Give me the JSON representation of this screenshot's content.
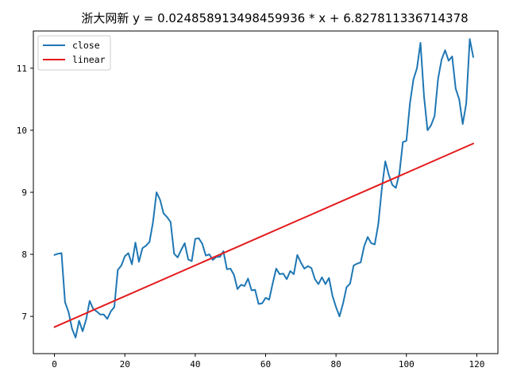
{
  "chart_data": {
    "type": "line",
    "title": "浙大网新 y = 0.024858913498459936 * x + 6.827811336714378",
    "xlabel": "",
    "ylabel": "",
    "xlim": [
      -6,
      126
    ],
    "ylim": [
      6.4,
      11.6
    ],
    "xticks": [
      0,
      20,
      40,
      60,
      80,
      100,
      120
    ],
    "yticks": [
      7,
      8,
      9,
      10,
      11
    ],
    "xtick_labels": [
      "0",
      "20",
      "40",
      "60",
      "80",
      "100",
      "120"
    ],
    "ytick_labels": [
      "7",
      "8",
      "9",
      "10",
      "11"
    ],
    "legend_position": "top-left",
    "grid": false,
    "series": [
      {
        "name": "close",
        "color": "#1f77b4",
        "x": [
          0,
          1,
          2,
          3,
          4,
          5,
          6,
          7,
          8,
          9,
          10,
          11,
          12,
          13,
          14,
          15,
          16,
          17,
          18,
          19,
          20,
          21,
          22,
          23,
          24,
          25,
          26,
          27,
          28,
          29,
          30,
          31,
          32,
          33,
          34,
          35,
          36,
          37,
          38,
          39,
          40,
          41,
          42,
          43,
          44,
          45,
          46,
          47,
          48,
          49,
          50,
          51,
          52,
          53,
          54,
          55,
          56,
          57,
          58,
          59,
          60,
          61,
          62,
          63,
          64,
          65,
          66,
          67,
          68,
          69,
          70,
          71,
          72,
          73,
          74,
          75,
          76,
          77,
          78,
          79,
          80,
          81,
          82,
          83,
          84,
          85,
          86,
          87,
          88,
          89,
          90,
          91,
          92,
          93,
          94,
          95,
          96,
          97,
          98,
          99,
          100,
          101,
          102,
          103,
          104,
          105,
          106,
          107,
          108,
          109,
          110,
          111,
          112,
          113,
          114,
          115,
          116,
          117,
          118,
          119
        ],
        "y": [
          7.99,
          8.01,
          8.02,
          7.23,
          7.07,
          6.8,
          6.66,
          6.93,
          6.76,
          6.95,
          7.25,
          7.12,
          7.08,
          7.03,
          7.03,
          6.96,
          7.08,
          7.15,
          7.75,
          7.82,
          7.97,
          8.02,
          7.84,
          8.19,
          7.88,
          8.1,
          8.14,
          8.2,
          8.52,
          9.0,
          8.88,
          8.66,
          8.6,
          8.52,
          8.01,
          7.95,
          8.07,
          8.18,
          7.92,
          7.89,
          8.25,
          8.26,
          8.17,
          7.98,
          8.0,
          7.91,
          7.96,
          7.96,
          8.05,
          7.76,
          7.77,
          7.67,
          7.44,
          7.51,
          7.49,
          7.61,
          7.42,
          7.43,
          7.2,
          7.21,
          7.3,
          7.27,
          7.53,
          7.77,
          7.68,
          7.69,
          7.6,
          7.73,
          7.68,
          7.99,
          7.87,
          7.77,
          7.81,
          7.78,
          7.6,
          7.52,
          7.63,
          7.52,
          7.62,
          7.33,
          7.15,
          7.0,
          7.21,
          7.47,
          7.53,
          7.82,
          7.85,
          7.87,
          8.13,
          8.28,
          8.18,
          8.16,
          8.48,
          9.05,
          9.5,
          9.28,
          9.12,
          9.07,
          9.3,
          9.81,
          9.83,
          10.43,
          10.82,
          11.0,
          11.41,
          10.55,
          10.0,
          10.08,
          10.23,
          10.83,
          11.14,
          11.29,
          11.12,
          11.19,
          10.67,
          10.5,
          10.1,
          10.43,
          11.47,
          11.18
        ]
      },
      {
        "name": "linear",
        "color": "#e41a1c",
        "x": [
          0,
          119
        ],
        "y": [
          6.8278,
          9.786
        ]
      }
    ]
  }
}
